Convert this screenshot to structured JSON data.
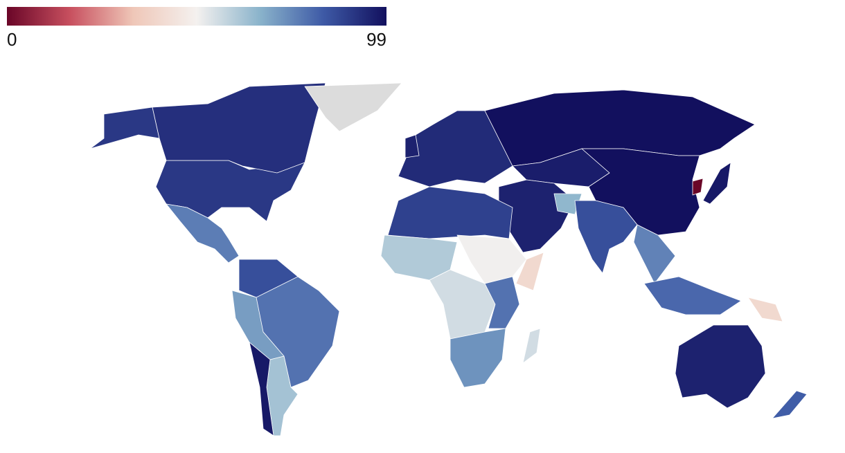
{
  "chart_data": {
    "type": "choropleth",
    "zlim": [
      0,
      99
    ],
    "colorbar": {
      "ticks": [
        0,
        99
      ]
    },
    "colorscale": [
      "#6a0628",
      "#c8505f",
      "#efc7b8",
      "#f4f1ef",
      "#8ab3cb",
      "#3e5aa6",
      "#12105e"
    ],
    "null_color": "#dcdcdc",
    "values": [
      90,
      92,
      null,
      76,
      85,
      78,
      70,
      62,
      97,
      93,
      99,
      96,
      99,
      95,
      65,
      85,
      75,
      0,
      97,
      80,
      40,
      95,
      82,
      88,
      60,
      50,
      40,
      55,
      78,
      72,
      55,
      95
    ]
  }
}
